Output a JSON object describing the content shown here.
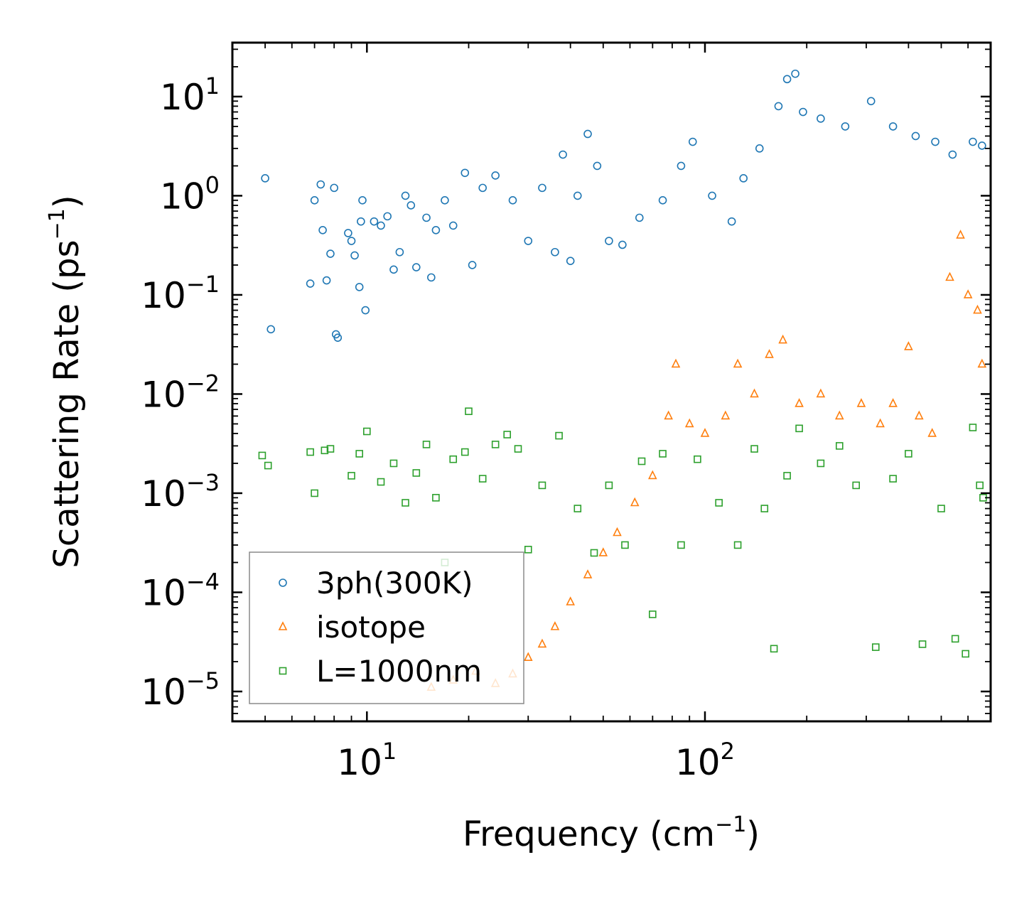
{
  "chart_data": {
    "type": "scatter",
    "xscale": "log",
    "yscale": "log",
    "xlim": [
      4.0,
      700
    ],
    "ylim": [
      5e-06,
      35
    ],
    "xlabel": "Frequency (cm",
    "xlabel_sup": "−1",
    "xlabel_end": ")",
    "ylabel": "Scattering Rate (ps",
    "ylabel_sup": "−1",
    "ylabel_end": ")",
    "x_ticks": [
      {
        "value": 10,
        "base": "10",
        "exp": "1"
      },
      {
        "value": 100,
        "base": "10",
        "exp": "2"
      }
    ],
    "y_ticks": [
      {
        "value": 10,
        "base": "10",
        "exp": "1"
      },
      {
        "value": 1,
        "base": "10",
        "exp": "0"
      },
      {
        "value": 0.1,
        "base": "10",
        "exp": "−1"
      },
      {
        "value": 0.01,
        "base": "10",
        "exp": "−2"
      },
      {
        "value": 0.001,
        "base": "10",
        "exp": "−3"
      },
      {
        "value": 0.0001,
        "base": "10",
        "exp": "−4"
      },
      {
        "value": 1e-05,
        "base": "10",
        "exp": "−5"
      }
    ],
    "legend_position": "lower-left",
    "series": [
      {
        "name": "3ph(300K)",
        "marker": "circle",
        "color": "#1f77b4",
        "points": [
          [
            5.0,
            1.5
          ],
          [
            5.2,
            0.045
          ],
          [
            6.8,
            0.13
          ],
          [
            7.0,
            0.9
          ],
          [
            7.3,
            1.3
          ],
          [
            7.4,
            0.45
          ],
          [
            7.6,
            0.14
          ],
          [
            7.8,
            0.26
          ],
          [
            8.0,
            1.2
          ],
          [
            8.1,
            0.04
          ],
          [
            8.2,
            0.037
          ],
          [
            8.8,
            0.42
          ],
          [
            9.0,
            0.35
          ],
          [
            9.2,
            0.25
          ],
          [
            9.5,
            0.12
          ],
          [
            9.6,
            0.55
          ],
          [
            9.7,
            0.9
          ],
          [
            9.9,
            0.07
          ],
          [
            10.5,
            0.55
          ],
          [
            11.0,
            0.5
          ],
          [
            11.5,
            0.62
          ],
          [
            12.0,
            0.18
          ],
          [
            12.5,
            0.27
          ],
          [
            13.0,
            1.0
          ],
          [
            13.5,
            0.8
          ],
          [
            14.0,
            0.19
          ],
          [
            15.0,
            0.6
          ],
          [
            15.5,
            0.15
          ],
          [
            16.0,
            0.45
          ],
          [
            17.0,
            0.9
          ],
          [
            18.0,
            0.5
          ],
          [
            19.5,
            1.7
          ],
          [
            20.5,
            0.2
          ],
          [
            22.0,
            1.2
          ],
          [
            24.0,
            1.6
          ],
          [
            27.0,
            0.9
          ],
          [
            30.0,
            0.35
          ],
          [
            33.0,
            1.2
          ],
          [
            36.0,
            0.27
          ],
          [
            38.0,
            2.6
          ],
          [
            40.0,
            0.22
          ],
          [
            42.0,
            1.0
          ],
          [
            45.0,
            4.2
          ],
          [
            48.0,
            2.0
          ],
          [
            52.0,
            0.35
          ],
          [
            57.0,
            0.32
          ],
          [
            64.0,
            0.6
          ],
          [
            75.0,
            0.9
          ],
          [
            85.0,
            2.0
          ],
          [
            92.0,
            3.5
          ],
          [
            105.0,
            1.0
          ],
          [
            120.0,
            0.55
          ],
          [
            130.0,
            1.5
          ],
          [
            145.0,
            3.0
          ],
          [
            165.0,
            8.0
          ],
          [
            175.0,
            15.0
          ],
          [
            185.0,
            17.0
          ],
          [
            195.0,
            7.0
          ],
          [
            220.0,
            6.0
          ],
          [
            260.0,
            5.0
          ],
          [
            310.0,
            9.0
          ],
          [
            360.0,
            5.0
          ],
          [
            420.0,
            4.0
          ],
          [
            480.0,
            3.5
          ],
          [
            540.0,
            2.6
          ],
          [
            620.0,
            3.5
          ],
          [
            660.0,
            3.2
          ]
        ]
      },
      {
        "name": "isotope",
        "marker": "triangle",
        "color": "#ff7f0e",
        "points": [
          [
            15.5,
            1.1e-05
          ],
          [
            18.0,
            1.3e-05
          ],
          [
            21.0,
            1.6e-05
          ],
          [
            24.0,
            1.2e-05
          ],
          [
            27.0,
            1.5e-05
          ],
          [
            30.0,
            2.2e-05
          ],
          [
            33.0,
            3e-05
          ],
          [
            36.0,
            4.5e-05
          ],
          [
            40.0,
            8e-05
          ],
          [
            45.0,
            0.00015
          ],
          [
            50.0,
            0.00025
          ],
          [
            55.0,
            0.0004
          ],
          [
            62.0,
            0.0008
          ],
          [
            70.0,
            0.0015
          ],
          [
            78.0,
            0.006
          ],
          [
            82.0,
            0.02
          ],
          [
            90.0,
            0.005
          ],
          [
            100.0,
            0.004
          ],
          [
            115.0,
            0.006
          ],
          [
            125.0,
            0.02
          ],
          [
            140.0,
            0.01
          ],
          [
            155.0,
            0.025
          ],
          [
            170.0,
            0.035
          ],
          [
            190.0,
            0.008
          ],
          [
            220.0,
            0.01
          ],
          [
            250.0,
            0.006
          ],
          [
            290.0,
            0.008
          ],
          [
            330.0,
            0.005
          ],
          [
            360.0,
            0.008
          ],
          [
            400.0,
            0.03
          ],
          [
            430.0,
            0.006
          ],
          [
            470.0,
            0.004
          ],
          [
            530.0,
            0.15
          ],
          [
            570.0,
            0.4
          ],
          [
            600.0,
            0.1
          ],
          [
            640.0,
            0.07
          ],
          [
            660.0,
            0.02
          ]
        ]
      },
      {
        "name": "L=1000nm",
        "marker": "square",
        "color": "#2ca02c",
        "points": [
          [
            4.9,
            0.0024
          ],
          [
            5.1,
            0.0019
          ],
          [
            6.8,
            0.0026
          ],
          [
            7.0,
            0.001
          ],
          [
            7.5,
            0.0027
          ],
          [
            7.8,
            0.0028
          ],
          [
            9.0,
            0.0015
          ],
          [
            9.5,
            0.0025
          ],
          [
            10.0,
            0.0042
          ],
          [
            11.0,
            0.0013
          ],
          [
            12.0,
            0.002
          ],
          [
            13.0,
            0.0008
          ],
          [
            14.0,
            0.0016
          ],
          [
            15.0,
            0.0031
          ],
          [
            16.0,
            0.0009
          ],
          [
            17.0,
            0.0002
          ],
          [
            18.0,
            0.0022
          ],
          [
            19.5,
            0.0026
          ],
          [
            20.0,
            0.0067
          ],
          [
            22.0,
            0.0014
          ],
          [
            24.0,
            0.0031
          ],
          [
            26.0,
            0.0039
          ],
          [
            28.0,
            0.0028
          ],
          [
            30.0,
            0.00027
          ],
          [
            33.0,
            0.0012
          ],
          [
            37.0,
            0.0038
          ],
          [
            42.0,
            0.0007
          ],
          [
            47.0,
            0.00025
          ],
          [
            52.0,
            0.0012
          ],
          [
            58.0,
            0.0003
          ],
          [
            65.0,
            0.0021
          ],
          [
            70.0,
            6e-05
          ],
          [
            75.0,
            0.0025
          ],
          [
            85.0,
            0.0003
          ],
          [
            95.0,
            0.0022
          ],
          [
            110.0,
            0.0008
          ],
          [
            125.0,
            0.0003
          ],
          [
            140.0,
            0.0028
          ],
          [
            150.0,
            0.0007
          ],
          [
            160.0,
            2.7e-05
          ],
          [
            175.0,
            0.0015
          ],
          [
            190.0,
            0.0045
          ],
          [
            220.0,
            0.002
          ],
          [
            250.0,
            0.003
          ],
          [
            280.0,
            0.0012
          ],
          [
            320.0,
            2.8e-05
          ],
          [
            360.0,
            0.0014
          ],
          [
            400.0,
            0.0025
          ],
          [
            440.0,
            3e-05
          ],
          [
            500.0,
            0.0007
          ],
          [
            550.0,
            3.4e-05
          ],
          [
            590.0,
            2.4e-05
          ],
          [
            620.0,
            0.0046
          ],
          [
            650.0,
            0.0012
          ],
          [
            665.0,
            0.0009
          ]
        ]
      }
    ]
  }
}
